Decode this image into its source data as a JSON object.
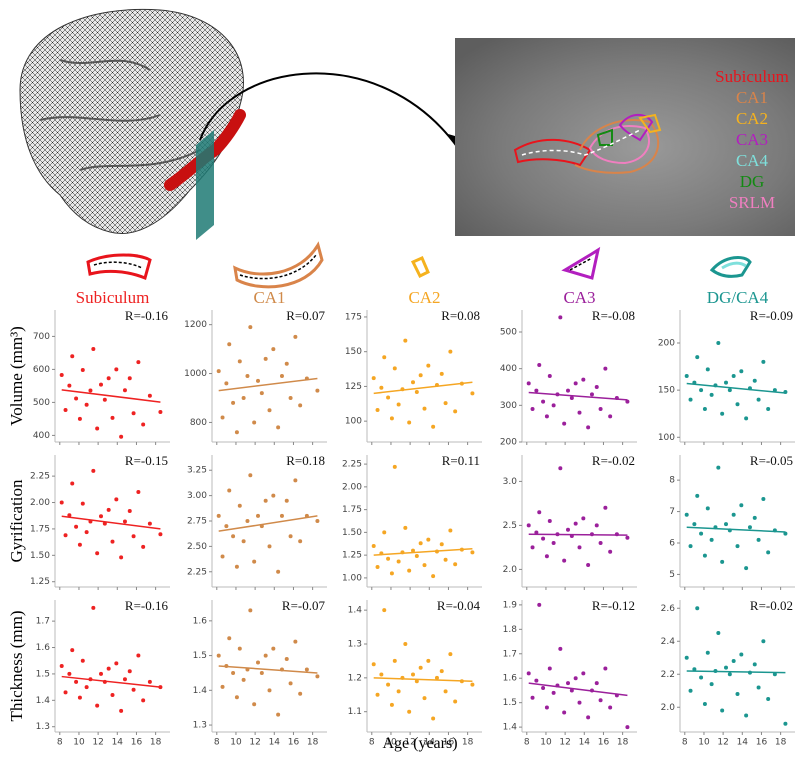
{
  "chart_data": {
    "type": "scatter-grid",
    "x_label": "Age (years)",
    "mri_legend": [
      {
        "label": "Subiculum",
        "color": "#e8141c"
      },
      {
        "label": "CA1",
        "color": "#d9844a"
      },
      {
        "label": "CA2",
        "color": "#f5b21e"
      },
      {
        "label": "CA3",
        "color": "#b21fbf"
      },
      {
        "label": "CA4",
        "color": "#7fe0dc"
      },
      {
        "label": "DG",
        "color": "#138a13"
      },
      {
        "label": "SRLM",
        "color": "#f07fc0"
      }
    ],
    "columns": [
      {
        "name": "Subiculum",
        "color": "#ee2222"
      },
      {
        "name": "CA1",
        "color": "#d08a4a"
      },
      {
        "name": "CA2",
        "color": "#f5a623"
      },
      {
        "name": "CA3",
        "color": "#9b209b"
      },
      {
        "name": "DG/CA4",
        "color": "#1b9690"
      }
    ],
    "x": [
      8.2,
      8.6,
      9.0,
      9.3,
      9.7,
      10.1,
      10.4,
      10.8,
      11.2,
      11.5,
      11.9,
      12.3,
      12.7,
      13.1,
      13.5,
      13.9,
      14.4,
      14.8,
      15.3,
      15.7,
      16.2,
      16.7,
      17.4,
      18.5
    ],
    "xlim": [
      7.5,
      19.5
    ],
    "xticks": [
      8,
      10,
      12,
      14,
      16,
      18
    ],
    "rows": [
      {
        "label": "Volume (mm³)",
        "panels": [
          {
            "ylim": [
              380,
              780
            ],
            "yticks": [
              400,
              500,
              600,
              700
            ],
            "r_label": "R=-0.16",
            "fit": [
              538,
              501
            ],
            "values": [
              583,
              477,
              551,
              640,
              512,
              450,
              598,
              493,
              536,
              662,
              421,
              554,
              508,
              573,
              453,
              600,
              396,
              537,
              573,
              467,
              622,
              433,
              520,
              471
            ]
          },
          {
            "ylim": [
              720,
              1260
            ],
            "yticks": [
              800,
              1000,
              1200
            ],
            "r_label": "R=0.07",
            "fit": [
              930,
              980
            ],
            "values": [
              1010,
              820,
              960,
              1120,
              880,
              760,
              1050,
              900,
              990,
              1190,
              800,
              970,
              920,
              1060,
              850,
              1100,
              780,
              990,
              1040,
              900,
              1150,
              870,
              980,
              930
            ]
          },
          {
            "ylim": [
              85,
              180
            ],
            "yticks": [
              100,
              125,
              150,
              175
            ],
            "r_label": "R=0.08",
            "fit": [
              120,
              128
            ],
            "values": [
              131,
              108,
              124,
              146,
              117,
              102,
              138,
              112,
              123,
              158,
              99,
              128,
              121,
              133,
              109,
              140,
              96,
              126,
              134,
              113,
              150,
              107,
              127,
              120
            ]
          },
          {
            "ylim": [
              200,
              560
            ],
            "yticks": [
              200,
              300,
              400,
              500
            ],
            "r_label": "R=-0.08",
            "fit": [
              335,
              315
            ],
            "values": [
              360,
              290,
              340,
              410,
              310,
              270,
              380,
              300,
              330,
              540,
              250,
              340,
              320,
              360,
              280,
              370,
              240,
              330,
              350,
              290,
              400,
              270,
              320,
              310
            ]
          },
          {
            "ylim": [
              95,
              235
            ],
            "yticks": [
              100,
              150,
              200
            ],
            "r_label": "R=-0.09",
            "fit": [
              157,
              147
            ],
            "values": [
              165,
              140,
              158,
              185,
              150,
              130,
              172,
              145,
              155,
              200,
              125,
              158,
              150,
              165,
              135,
              170,
              120,
              152,
              160,
              140,
              180,
              130,
              150,
              148
            ]
          }
        ]
      },
      {
        "label": "Gyrification",
        "panels": [
          {
            "ylim": [
              1.2,
              2.45
            ],
            "yticks": [
              {
                "value": 1.25,
                "label": "1.25"
              },
              {
                "value": 1.5,
                "label": "1.50"
              },
              {
                "value": 1.75,
                "label": "1.75"
              },
              {
                "value": 2,
                "label": "2.00"
              },
              {
                "value": 2.25,
                "label": "2.25"
              }
            ],
            "r_label": "R=-0.15",
            "fit": [
              1.87,
              1.75
            ],
            "values": [
              2.0,
              1.69,
              1.88,
              2.18,
              1.77,
              1.6,
              1.99,
              1.72,
              1.82,
              2.3,
              1.52,
              1.87,
              1.8,
              1.93,
              1.63,
              2.03,
              1.48,
              1.82,
              1.92,
              1.68,
              2.1,
              1.58,
              1.8,
              1.7
            ]
          },
          {
            "ylim": [
              2.1,
              3.4
            ],
            "yticks": [
              {
                "value": 2.25,
                "label": "2.25"
              },
              {
                "value": 2.5,
                "label": "2.50"
              },
              {
                "value": 2.75,
                "label": "2.75"
              },
              {
                "value": 3,
                "label": "3.00"
              },
              {
                "value": 3.25,
                "label": "3.25"
              }
            ],
            "r_label": "R=0.18",
            "fit": [
              2.65,
              2.8
            ],
            "values": [
              2.8,
              2.4,
              2.7,
              3.05,
              2.6,
              2.3,
              2.9,
              2.55,
              2.75,
              3.2,
              2.35,
              2.8,
              2.7,
              2.95,
              2.5,
              3.0,
              2.25,
              2.8,
              2.95,
              2.6,
              3.15,
              2.55,
              2.8,
              2.75
            ]
          },
          {
            "ylim": [
              0.9,
              2.35
            ],
            "yticks": [
              {
                "value": 1,
                "label": "1.00"
              },
              {
                "value": 1.25,
                "label": "1.25"
              },
              {
                "value": 1.5,
                "label": "1.50"
              },
              {
                "value": 1.75,
                "label": "1.75"
              },
              {
                "value": 2,
                "label": "2.00"
              },
              {
                "value": 2.25,
                "label": "2.25"
              }
            ],
            "r_label": "R=0.11",
            "fit": [
              1.25,
              1.32
            ],
            "values": [
              1.35,
              1.12,
              1.27,
              1.5,
              1.21,
              1.05,
              2.22,
              1.18,
              1.28,
              1.55,
              1.08,
              1.3,
              1.24,
              1.38,
              1.14,
              1.42,
              1.02,
              1.29,
              1.37,
              1.2,
              1.52,
              1.15,
              1.31,
              1.28
            ]
          },
          {
            "ylim": [
              1.8,
              3.3
            ],
            "yticks": [
              {
                "value": 2,
                "label": "2.0"
              },
              {
                "value": 2.5,
                "label": "2.5"
              },
              {
                "value": 3,
                "label": "3.0"
              }
            ],
            "r_label": "R=-0.02",
            "fit": [
              2.4,
              2.39
            ],
            "values": [
              2.5,
              2.25,
              2.42,
              2.65,
              2.35,
              2.15,
              2.55,
              2.3,
              2.4,
              3.15,
              2.1,
              2.45,
              2.38,
              2.52,
              2.25,
              2.58,
              2.05,
              2.4,
              2.5,
              2.3,
              2.7,
              2.2,
              2.4,
              2.36
            ]
          },
          {
            "ylim": [
              4.6,
              8.8
            ],
            "yticks": [
              5,
              6,
              7,
              8
            ],
            "r_label": "R=-0.05",
            "fit": [
              6.5,
              6.35
            ],
            "values": [
              6.9,
              5.9,
              6.6,
              7.5,
              6.3,
              5.6,
              7.1,
              6.1,
              6.5,
              8.4,
              5.4,
              6.6,
              6.4,
              6.9,
              5.9,
              7.2,
              5.2,
              6.5,
              6.8,
              6.1,
              7.4,
              5.7,
              6.4,
              6.3
            ]
          }
        ]
      },
      {
        "label": "Thickness (mm)",
        "panels": [
          {
            "ylim": [
              1.28,
              1.78
            ],
            "yticks": [
              1.3,
              1.4,
              1.5,
              1.6,
              1.7
            ],
            "r_label": "R=-0.16",
            "fit": [
              1.49,
              1.45
            ],
            "values": [
              1.53,
              1.43,
              1.5,
              1.59,
              1.47,
              1.41,
              1.55,
              1.45,
              1.48,
              1.75,
              1.38,
              1.5,
              1.47,
              1.52,
              1.42,
              1.54,
              1.36,
              1.48,
              1.51,
              1.44,
              1.57,
              1.4,
              1.47,
              1.45
            ]
          },
          {
            "ylim": [
              1.28,
              1.66
            ],
            "yticks": [
              1.3,
              1.4,
              1.5,
              1.6
            ],
            "r_label": "R=-0.07",
            "fit": [
              1.47,
              1.45
            ],
            "values": [
              1.5,
              1.41,
              1.47,
              1.55,
              1.45,
              1.38,
              1.52,
              1.43,
              1.46,
              1.63,
              1.36,
              1.48,
              1.45,
              1.5,
              1.4,
              1.52,
              1.33,
              1.46,
              1.49,
              1.42,
              1.54,
              1.39,
              1.46,
              1.44
            ]
          },
          {
            "ylim": [
              1.04,
              1.43
            ],
            "yticks": [
              1.1,
              1.2,
              1.3,
              1.4
            ],
            "r_label": "R=-0.04",
            "fit": [
              1.2,
              1.19
            ],
            "values": [
              1.24,
              1.15,
              1.21,
              1.4,
              1.18,
              1.12,
              1.25,
              1.16,
              1.2,
              1.3,
              1.1,
              1.21,
              1.19,
              1.23,
              1.14,
              1.25,
              1.08,
              1.2,
              1.22,
              1.16,
              1.27,
              1.13,
              1.19,
              1.18
            ]
          },
          {
            "ylim": [
              1.38,
              1.92
            ],
            "yticks": [
              1.4,
              1.5,
              1.6,
              1.7,
              1.8,
              1.9
            ],
            "r_label": "R=-0.12",
            "fit": [
              1.58,
              1.53
            ],
            "values": [
              1.62,
              1.52,
              1.59,
              1.9,
              1.56,
              1.48,
              1.64,
              1.54,
              1.57,
              1.72,
              1.46,
              1.58,
              1.55,
              1.6,
              1.5,
              1.62,
              1.44,
              1.55,
              1.58,
              1.51,
              1.64,
              1.48,
              1.53,
              1.4
            ]
          },
          {
            "ylim": [
              1.85,
              2.65
            ],
            "yticks": [
              {
                "value": 2,
                "label": "2.0"
              },
              {
                "value": 2.2,
                "label": "2.2"
              },
              {
                "value": 2.4,
                "label": "2.4"
              },
              {
                "value": 2.6,
                "label": "2.6"
              }
            ],
            "r_label": "R=-0.02",
            "fit": [
              2.22,
              2.21
            ],
            "values": [
              2.3,
              2.1,
              2.23,
              2.6,
              2.18,
              2.02,
              2.33,
              2.14,
              2.22,
              2.45,
              1.98,
              2.24,
              2.2,
              2.28,
              2.08,
              2.32,
              1.95,
              2.21,
              2.26,
              2.12,
              2.4,
              2.05,
              2.2,
              1.9
            ]
          }
        ]
      }
    ]
  }
}
